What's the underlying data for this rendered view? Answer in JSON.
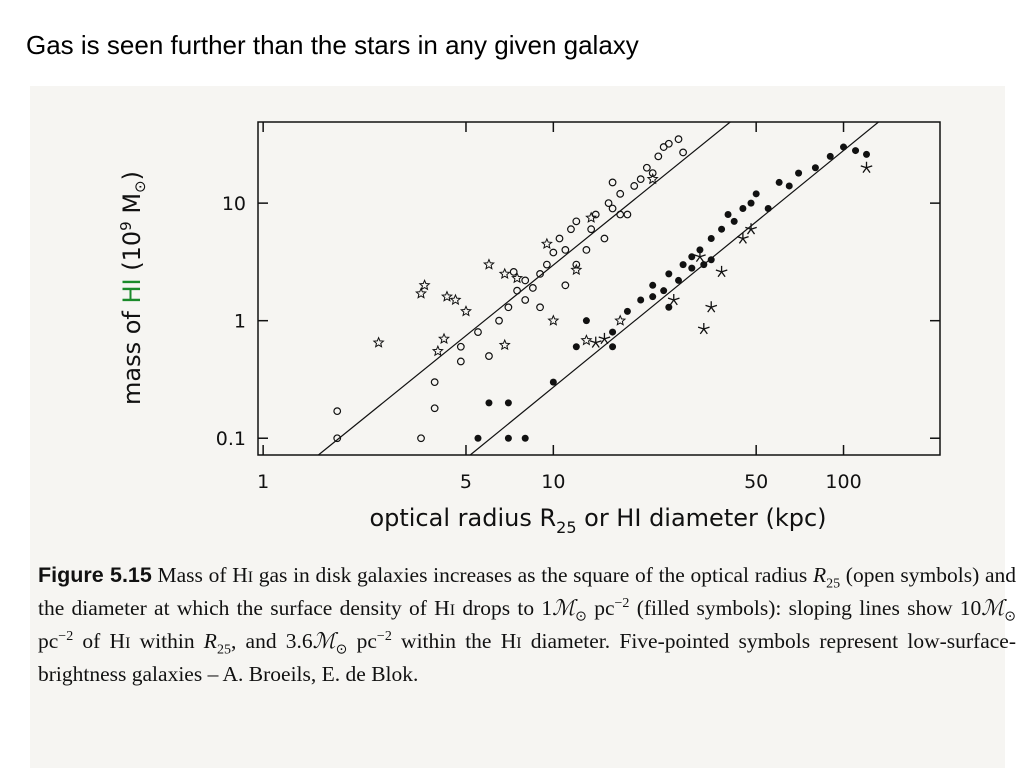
{
  "title": "Gas is seen further than the stars in any given galaxy",
  "chart_data": {
    "type": "scatter",
    "xscale": "log",
    "yscale": "log",
    "xlim": [
      0.96,
      215
    ],
    "ylim": [
      0.072,
      49
    ],
    "xticks": [
      1,
      5,
      10,
      50,
      100
    ],
    "yticks": [
      0.1,
      1,
      10
    ],
    "xlabel": [
      "optical radius R",
      "25",
      " or HI diameter (kpc)"
    ],
    "ylabel": [
      "mass of ",
      "HI",
      " (10",
      "9",
      " M",
      "⊙",
      ")"
    ],
    "label_accent_color": "#1a8a2a",
    "color": "#111111",
    "lines": [
      {
        "x": [
          1.55,
          40.7
        ],
        "y": [
          0.072,
          49
        ]
      },
      {
        "x": [
          5.17,
          132
        ],
        "y": [
          0.072,
          49
        ]
      }
    ],
    "series": [
      {
        "marker": "open-circle",
        "x": [
          1.8,
          1.8,
          3.5,
          3.9,
          3.9,
          4.8,
          4.8,
          5.5,
          6,
          6.5,
          7,
          7.5,
          7.3,
          8,
          8.5,
          9,
          9.5,
          10,
          10.5,
          11,
          11.5,
          12,
          13,
          13.5,
          14,
          15,
          15.5,
          16,
          17,
          18,
          19,
          20,
          21,
          22,
          23,
          24,
          25,
          27,
          28,
          16,
          17,
          12,
          11,
          9,
          8
        ],
        "values": [
          0.17,
          0.1,
          0.1,
          0.3,
          0.18,
          0.6,
          0.45,
          0.8,
          0.5,
          1,
          1.3,
          1.8,
          2.6,
          2.2,
          1.9,
          2.5,
          3,
          3.8,
          5,
          4,
          6,
          7,
          4,
          6,
          8,
          5,
          10,
          9,
          12,
          8,
          14,
          16,
          20,
          18,
          25,
          30,
          32,
          35,
          27,
          15,
          8,
          3,
          2,
          1.3,
          1.5
        ]
      },
      {
        "marker": "open-star",
        "x": [
          2.5,
          3.5,
          3.6,
          4.2,
          4.3,
          4.6,
          5,
          6,
          6.8,
          7.5,
          9.5,
          12,
          10,
          13.5,
          22,
          17,
          13,
          4,
          6.8
        ],
        "values": [
          0.65,
          1.7,
          2,
          0.7,
          1.6,
          1.5,
          1.2,
          3,
          2.5,
          2.3,
          4.5,
          2.7,
          1,
          7.5,
          16,
          1,
          0.68,
          0.55,
          0.62
        ]
      },
      {
        "marker": "filled-circle",
        "x": [
          5.5,
          6,
          7,
          7,
          8,
          10,
          12,
          13,
          16,
          18,
          20,
          22,
          24,
          25,
          27,
          28,
          30,
          32,
          33,
          35,
          38,
          40,
          42,
          45,
          48,
          50,
          55,
          60,
          65,
          70,
          80,
          90,
          100,
          110,
          120,
          16,
          25,
          35,
          30,
          22
        ],
        "values": [
          0.1,
          0.2,
          0.1,
          0.2,
          0.1,
          0.3,
          0.6,
          1,
          0.8,
          1.2,
          1.5,
          2,
          1.8,
          2.5,
          2.2,
          3,
          3.5,
          4,
          3,
          5,
          6,
          8,
          7,
          9,
          10,
          12,
          9,
          15,
          14,
          18,
          20,
          25,
          30,
          28,
          26,
          0.6,
          1.3,
          3.3,
          2.8,
          1.6
        ]
      },
      {
        "marker": "asterisk",
        "x": [
          14,
          15,
          26,
          32,
          35,
          38,
          33,
          45,
          48,
          120
        ],
        "values": [
          0.65,
          0.7,
          1.5,
          3.5,
          1.3,
          2.6,
          0.85,
          5,
          6,
          20
        ]
      }
    ]
  },
  "caption": [
    "Figure 5.15",
    " Mass of H",
    "I",
    " gas in disk galaxies increases as the square of the optical radius ",
    "R",
    "25",
    " (open symbols) and the diameter at which the surface density of H",
    "I",
    " drops to 1",
    "ℳ",
    "⊙",
    " pc",
    "−2",
    " (filled symbols): sloping lines show 10",
    "ℳ",
    "⊙",
    " pc",
    "−2",
    " of H",
    "I",
    " within ",
    "R",
    "25",
    ", and 3.6",
    "ℳ",
    "⊙",
    " pc",
    "−2",
    " within the H",
    "I",
    " diameter.  Five-pointed symbols represent low-surface-brightness galaxies – A. Broeils, E. de Blok."
  ]
}
